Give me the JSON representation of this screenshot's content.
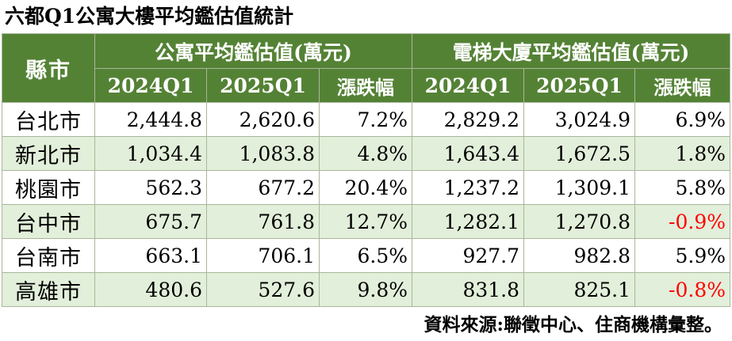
{
  "title": "六都Q1公寓大樓平均鑑估值統計",
  "header": {
    "city_label": "縣市",
    "group1_label": "公寓平均鑑估值(萬元)",
    "group2_label": "電梯大廈平均鑑估值(萬元)",
    "sub_labels": [
      "2024Q1",
      "2025Q1",
      "漲跌幅",
      "2024Q1",
      "2025Q1",
      "漲跌幅"
    ]
  },
  "rows": [
    {
      "city": "台北市",
      "apt_2024": "2,444.8",
      "apt_2025": "2,620.6",
      "apt_change": "7.2%",
      "elev_2024": "2,829.2",
      "elev_2025": "3,024.9",
      "elev_change": "6.9%"
    },
    {
      "city": "新北市",
      "apt_2024": "1,034.4",
      "apt_2025": "1,083.8",
      "apt_change": "4.8%",
      "elev_2024": "1,643.4",
      "elev_2025": "1,672.5",
      "elev_change": "1.8%"
    },
    {
      "city": "桃園市",
      "apt_2024": "562.3",
      "apt_2025": "677.2",
      "apt_change": "20.4%",
      "elev_2024": "1,237.2",
      "elev_2025": "1,309.1",
      "elev_change": "5.8%"
    },
    {
      "city": "台中市",
      "apt_2024": "675.7",
      "apt_2025": "761.8",
      "apt_change": "12.7%",
      "elev_2024": "1,282.1",
      "elev_2025": "1,270.8",
      "elev_change": "-0.9%"
    },
    {
      "city": "台南市",
      "apt_2024": "663.1",
      "apt_2025": "706.1",
      "apt_change": "6.5%",
      "elev_2024": "927.7",
      "elev_2025": "982.8",
      "elev_change": "5.9%"
    },
    {
      "city": "高雄市",
      "apt_2024": "480.6",
      "apt_2025": "527.6",
      "apt_change": "9.8%",
      "elev_2024": "831.8",
      "elev_2025": "825.1",
      "elev_change": "-0.8%"
    }
  ],
  "source": "資料來源:聯徵中心、住商機構彙整。",
  "colors": {
    "header_bg": "#548235",
    "header_text": "#ffffff",
    "stripe_bg": "#e2efda",
    "negative": "#ff0000"
  }
}
